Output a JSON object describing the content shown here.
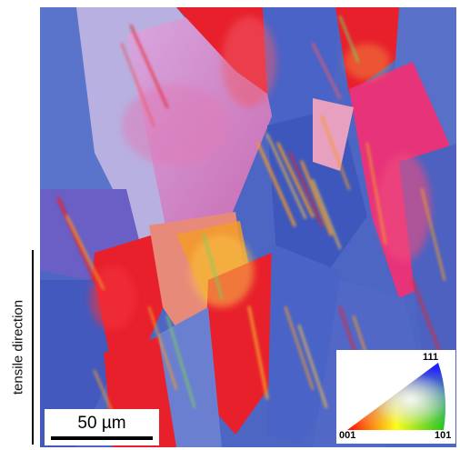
{
  "axis_label": "tensile direction",
  "scale_bar": {
    "label": "50 µm"
  },
  "ipf_legend": {
    "corner_001": "001",
    "corner_101": "101",
    "corner_111": "111"
  },
  "colors": {
    "red": "#e8202c",
    "blue": "#4a63c7",
    "pink": "#e88ab8",
    "orange": "#f39a2a",
    "green": "#7ccf5a"
  }
}
